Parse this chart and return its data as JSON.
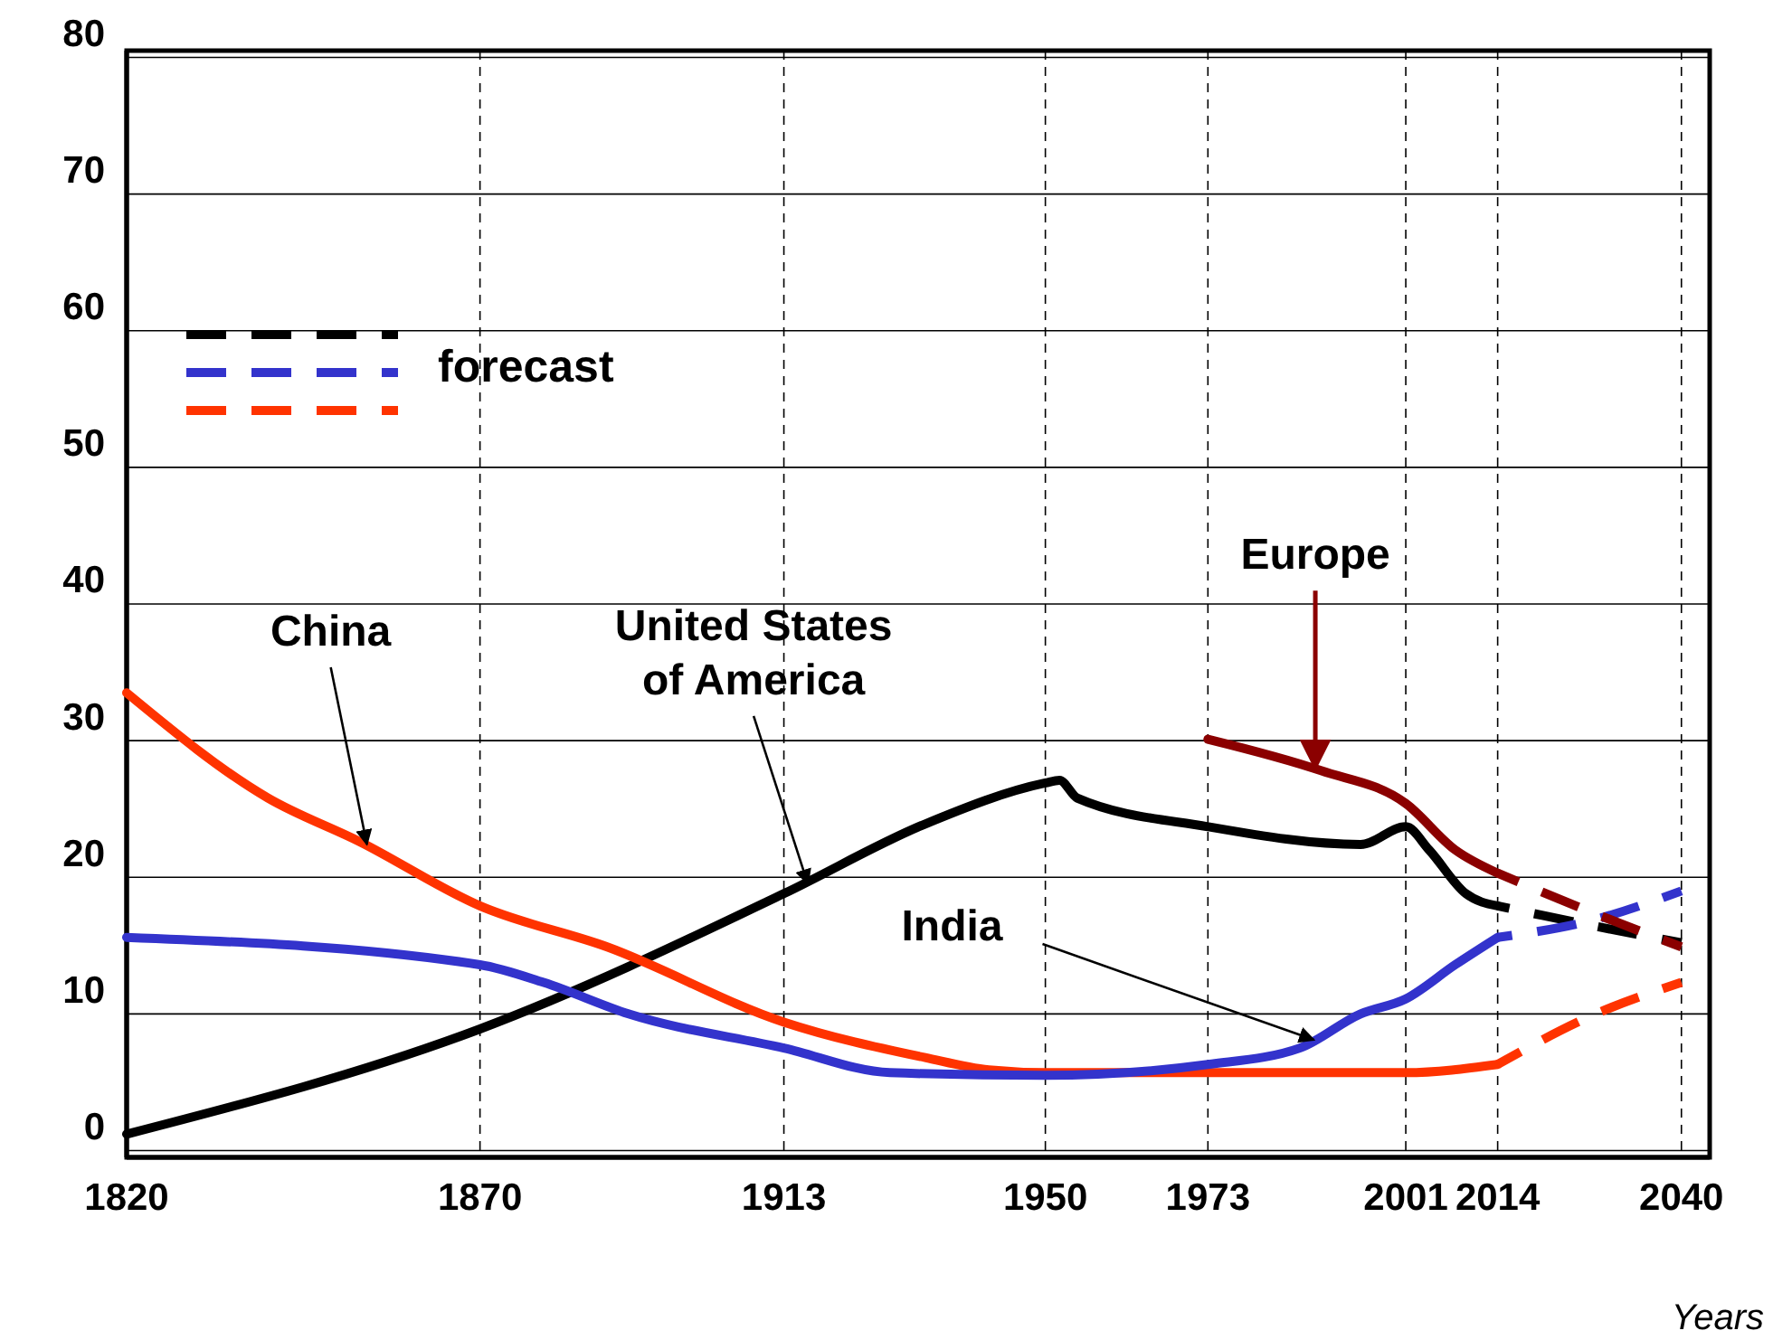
{
  "chart_data": {
    "type": "line",
    "xlabel": "Years",
    "legend_title": "forecast",
    "grid": true,
    "xlim": [
      1820,
      2044
    ],
    "xticks": [
      1820,
      1870,
      1913,
      1950,
      1973,
      2001,
      2014,
      2040
    ],
    "ylim": [
      -0.5,
      80.5
    ],
    "yticks": [
      0,
      10,
      20,
      30,
      40,
      50,
      60,
      70,
      80
    ],
    "series": [
      {
        "color": "#000000",
        "line_style": "solid",
        "x": [
          1820,
          1870,
          1913,
          1933,
          1950,
          1952,
          1954.5,
          1973,
          1994.6,
          2001,
          2004.3,
          2009.5,
          2014
        ],
        "values": [
          1.2,
          8.9,
          18.8,
          23.9,
          26.9,
          27.1,
          25.8,
          23.7,
          22.4,
          23.7,
          22.0,
          18.8,
          17.9
        ]
      },
      {
        "color": "#ff3300",
        "line_style": "solid",
        "x": [
          1820,
          1840,
          1853,
          1870,
          1888,
          1913,
          1933,
          1942,
          1950,
          1973,
          2001,
          2014
        ],
        "values": [
          33.5,
          25.8,
          22.6,
          17.9,
          14.9,
          9.4,
          6.8,
          5.9,
          5.7,
          5.7,
          5.7,
          6.3
        ]
      },
      {
        "color": "#3333cc",
        "line_style": "solid",
        "x": [
          1820,
          1870,
          1879,
          1891,
          1913,
          1928,
          1950,
          1973,
          1986,
          1994.6,
          2001,
          2008,
          2014
        ],
        "values": [
          15.6,
          13.6,
          12.3,
          10.0,
          7.5,
          5.7,
          5.5,
          6.3,
          7.5,
          10.0,
          11.1,
          13.6,
          15.6
        ]
      },
      {
        "color": "#8b0000",
        "line_style": "solid",
        "x": [
          1973,
          1989,
          2001,
          2008,
          2014
        ],
        "values": [
          30.1,
          27.8,
          25.4,
          22.0,
          20.3
        ]
      },
      {
        "color": "#000000",
        "line_style": "dashed",
        "x": [
          2014,
          2027,
          2040
        ],
        "values": [
          17.9,
          16.5,
          15.2
        ]
      },
      {
        "color": "#3333cc",
        "line_style": "dashed",
        "x": [
          2014,
          2027,
          2040
        ],
        "values": [
          15.6,
          16.8,
          19.0
        ]
      },
      {
        "color": "#ff3300",
        "line_style": "dashed",
        "x": [
          2014,
          2027,
          2040
        ],
        "values": [
          6.3,
          9.8,
          12.3
        ]
      },
      {
        "color": "#8b0000",
        "line_style": "dashed",
        "x": [
          2014,
          2027,
          2040
        ],
        "values": [
          20.3,
          17.5,
          14.9
        ]
      }
    ],
    "annotations": [
      {
        "text": "China",
        "x": 1854,
        "y": 22.4
      },
      {
        "text": "United States\nof America",
        "x": 1916.4,
        "y": 19.5
      },
      {
        "text": "India",
        "x": 1988,
        "y": 8.1
      },
      {
        "text": "Europe",
        "x": 1988.2,
        "y": 28.0
      }
    ]
  }
}
